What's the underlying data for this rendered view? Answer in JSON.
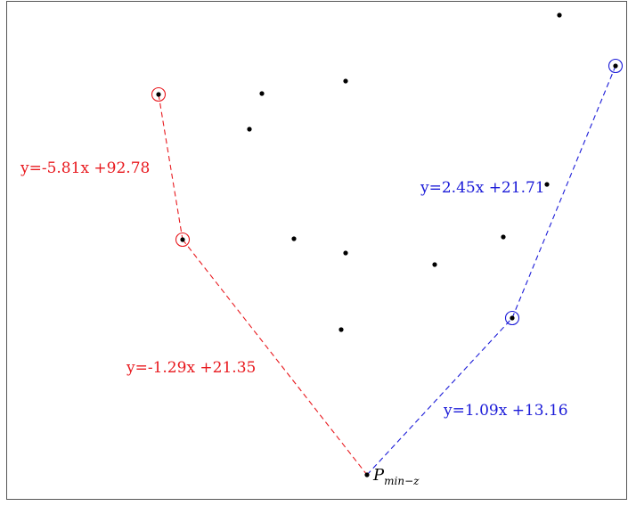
{
  "colors": {
    "left_chain": "#e8191e",
    "right_chain": "#1b1bd8",
    "points": "#000000",
    "frame": "#555555"
  },
  "labels": {
    "left_upper": "y=-5.81x +92.78",
    "left_lower": "y=-1.29x +21.35",
    "right_upper": "y=2.45x +21.71",
    "right_lower": "y=1.09x +13.16",
    "pmin": "P",
    "pmin_subscript": "min−z"
  }
}
